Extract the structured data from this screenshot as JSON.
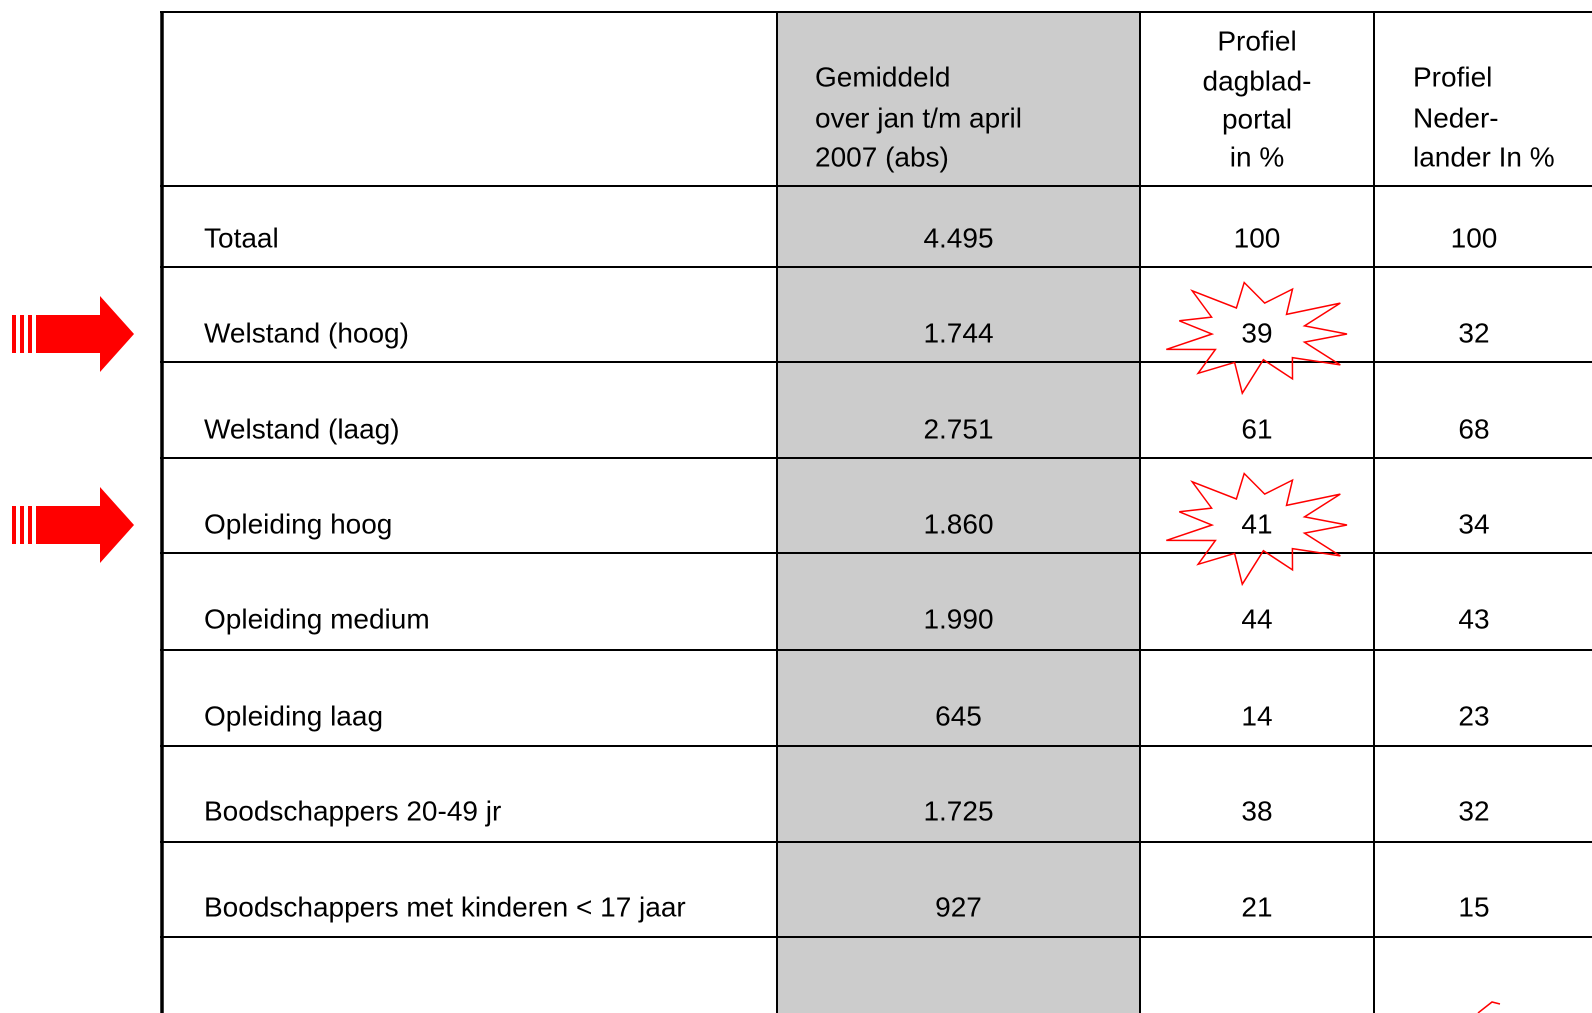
{
  "table": {
    "header": [
      [
        "Gemiddeld",
        "over jan t/m april",
        "2007 (abs)"
      ],
      [
        "Profiel",
        "dagblad-",
        "portal",
        "in %"
      ],
      [
        "Profiel",
        "Neder-",
        "lander In %"
      ]
    ],
    "rows": [
      [
        "Totaal",
        "4.495",
        "100",
        "100"
      ],
      [
        "Welstand (hoog)",
        "1.744",
        "39",
        "32"
      ],
      [
        "Welstand (laag)",
        "2.751",
        "61",
        "68"
      ],
      [
        "Opleiding hoog",
        "1.860",
        "41",
        "34"
      ],
      [
        "Opleiding medium",
        "1.990",
        "44",
        "43"
      ],
      [
        "Opleiding laag",
        "645",
        "14",
        "23"
      ],
      [
        "Boodschappers 20-49 jr",
        "1.725",
        "38",
        "32"
      ],
      [
        "Boodschappers met kinderen < 17 jaar",
        "927",
        "21",
        "15"
      ]
    ]
  }
}
